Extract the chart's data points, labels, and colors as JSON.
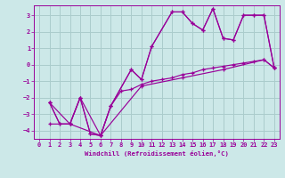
{
  "background_color": "#cce8e8",
  "grid_color": "#aacccc",
  "line_color": "#990099",
  "xlabel": "Windchill (Refroidissement éolien,°C)",
  "xlim": [
    -0.5,
    23.5
  ],
  "ylim": [
    -4.5,
    3.6
  ],
  "yticks": [
    -4,
    -3,
    -2,
    -1,
    0,
    1,
    2,
    3
  ],
  "xticks": [
    0,
    1,
    2,
    3,
    4,
    5,
    6,
    7,
    8,
    9,
    10,
    11,
    12,
    13,
    14,
    15,
    16,
    17,
    18,
    19,
    20,
    21,
    22,
    23
  ],
  "series": [
    {
      "x": [
        1,
        2,
        3,
        4,
        5,
        6,
        7,
        9,
        10,
        11,
        13,
        14,
        15,
        16,
        17,
        18,
        19,
        20,
        21,
        22,
        23
      ],
      "y": [
        -2.3,
        -3.6,
        -3.6,
        -2.0,
        -4.2,
        -4.3,
        -2.5,
        -0.3,
        -0.9,
        1.1,
        3.2,
        3.2,
        2.5,
        2.1,
        3.4,
        1.6,
        1.5,
        3.0,
        3.0,
        3.0,
        -0.2
      ]
    },
    {
      "x": [
        1,
        3,
        6,
        10,
        14,
        18,
        22,
        23
      ],
      "y": [
        -3.6,
        -3.6,
        -4.3,
        -1.3,
        -0.8,
        -0.3,
        0.3,
        -0.2
      ]
    },
    {
      "x": [
        1,
        2,
        3,
        4,
        5,
        6,
        7,
        8,
        9,
        10,
        11,
        12,
        13,
        14,
        15,
        16,
        17,
        18,
        19,
        20,
        21,
        22,
        23
      ],
      "y": [
        -2.3,
        -3.6,
        -3.6,
        -2.0,
        -4.2,
        -4.3,
        -2.5,
        -1.6,
        -1.5,
        -1.2,
        -1.0,
        -0.9,
        -0.8,
        -0.6,
        -0.5,
        -0.3,
        -0.2,
        -0.1,
        0.0,
        0.1,
        0.2,
        0.3,
        -0.2
      ]
    },
    {
      "x": [
        1,
        3,
        4,
        6,
        7,
        9,
        10,
        11,
        13,
        14,
        15,
        16,
        17,
        18,
        19,
        20,
        21,
        22,
        23
      ],
      "y": [
        -2.3,
        -3.6,
        -2.0,
        -4.3,
        -2.5,
        -0.3,
        -0.9,
        1.1,
        3.2,
        3.2,
        2.5,
        2.1,
        3.4,
        1.6,
        1.5,
        3.0,
        3.0,
        3.0,
        -0.2
      ]
    }
  ]
}
